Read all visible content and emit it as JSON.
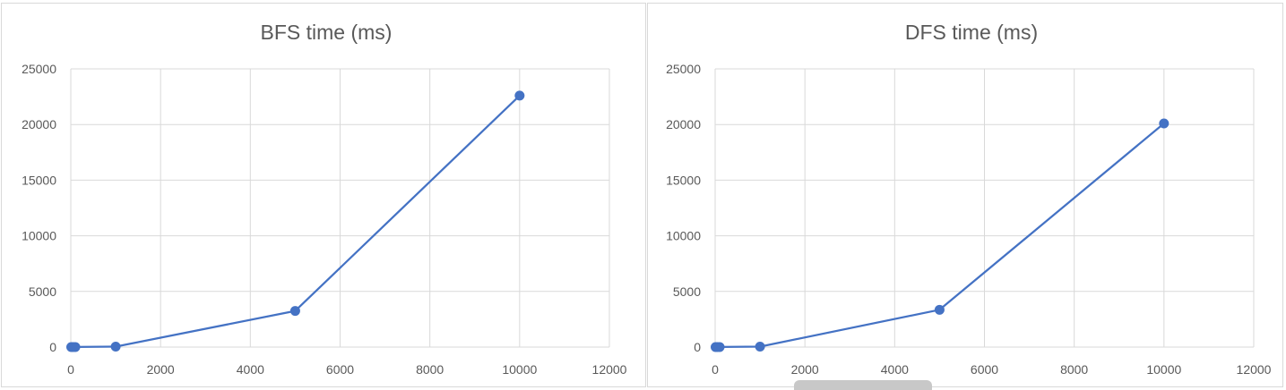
{
  "chart_data": [
    {
      "type": "scatter",
      "title": "BFS time (ms)",
      "xlabel": "",
      "ylabel": "",
      "xlim": [
        0,
        12000
      ],
      "ylim": [
        0,
        25000
      ],
      "xticks": [
        0,
        2000,
        4000,
        6000,
        8000,
        10000,
        12000
      ],
      "yticks": [
        0,
        5000,
        10000,
        15000,
        20000,
        25000
      ],
      "grid": true,
      "legend": "none",
      "color": "#4472c4",
      "series": [
        {
          "x": [
            10,
            50,
            100,
            1000,
            5000,
            10000
          ],
          "y": [
            0,
            2,
            5,
            40,
            3250,
            22600
          ]
        }
      ]
    },
    {
      "type": "scatter",
      "title": "DFS time (ms)",
      "xlabel": "",
      "ylabel": "",
      "xlim": [
        0,
        12000
      ],
      "ylim": [
        0,
        25000
      ],
      "xticks": [
        0,
        2000,
        4000,
        6000,
        8000,
        10000,
        12000
      ],
      "yticks": [
        0,
        5000,
        10000,
        15000,
        20000,
        25000
      ],
      "grid": true,
      "legend": "none",
      "color": "#4472c4",
      "series": [
        {
          "x": [
            10,
            50,
            100,
            1000,
            5000,
            10000
          ],
          "y": [
            0,
            2,
            5,
            40,
            3350,
            20100
          ]
        }
      ]
    }
  ]
}
